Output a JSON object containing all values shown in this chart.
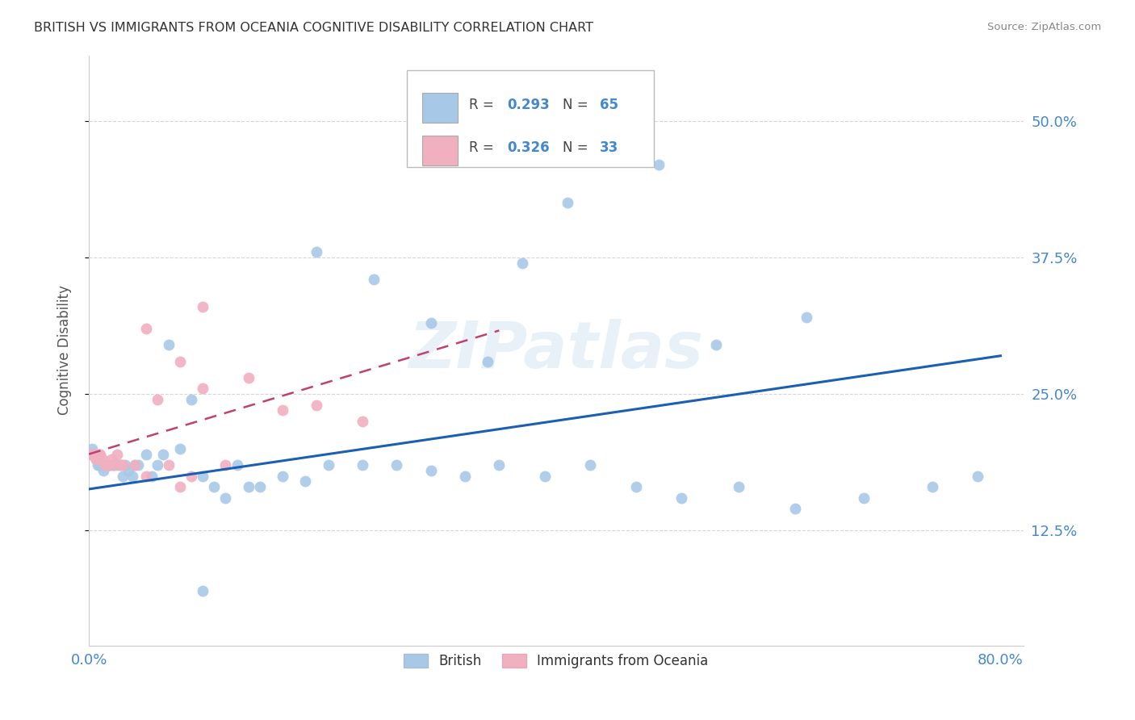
{
  "title": "BRITISH VS IMMIGRANTS FROM OCEANIA COGNITIVE DISABILITY CORRELATION CHART",
  "source": "Source: ZipAtlas.com",
  "ylabel": "Cognitive Disability",
  "xlim": [
    0.0,
    0.82
  ],
  "ylim": [
    0.02,
    0.56
  ],
  "y_tick_positions": [
    0.125,
    0.25,
    0.375,
    0.5
  ],
  "y_tick_labels": [
    "12.5%",
    "25.0%",
    "37.5%",
    "50.0%"
  ],
  "x_tick_positions": [
    0.0,
    0.2,
    0.4,
    0.6,
    0.8
  ],
  "x_tick_labels": [
    "0.0%",
    "",
    "",
    "",
    "80.0%"
  ],
  "blue_color": "#a8c8e8",
  "pink_color": "#f0b0c0",
  "blue_line_color": "#1a5fb4",
  "pink_line_color": "#c04070",
  "axis_color": "#4488cc",
  "watermark": "ZIPatlas",
  "legend_R_blue": "0.293",
  "legend_N_blue": "65",
  "legend_R_pink": "0.326",
  "legend_N_pink": "33",
  "blue_x": [
    0.002,
    0.003,
    0.004,
    0.005,
    0.006,
    0.007,
    0.008,
    0.009,
    0.01,
    0.011,
    0.012,
    0.013,
    0.015,
    0.016,
    0.018,
    0.02,
    0.022,
    0.025,
    0.027,
    0.03,
    0.032,
    0.035,
    0.038,
    0.04,
    0.043,
    0.05,
    0.055,
    0.06,
    0.065,
    0.07,
    0.08,
    0.09,
    0.1,
    0.11,
    0.12,
    0.13,
    0.14,
    0.15,
    0.17,
    0.19,
    0.21,
    0.24,
    0.27,
    0.3,
    0.33,
    0.36,
    0.4,
    0.44,
    0.48,
    0.52,
    0.57,
    0.62,
    0.68,
    0.74,
    0.78,
    0.25,
    0.3,
    0.38,
    0.42,
    0.5,
    0.55,
    0.63,
    0.35,
    0.2,
    0.1
  ],
  "blue_y": [
    0.195,
    0.2,
    0.195,
    0.195,
    0.19,
    0.19,
    0.185,
    0.185,
    0.185,
    0.185,
    0.185,
    0.18,
    0.185,
    0.185,
    0.185,
    0.185,
    0.185,
    0.185,
    0.185,
    0.175,
    0.185,
    0.18,
    0.175,
    0.185,
    0.185,
    0.195,
    0.175,
    0.185,
    0.195,
    0.295,
    0.2,
    0.245,
    0.175,
    0.165,
    0.155,
    0.185,
    0.165,
    0.165,
    0.175,
    0.17,
    0.185,
    0.185,
    0.185,
    0.18,
    0.175,
    0.185,
    0.175,
    0.185,
    0.165,
    0.155,
    0.165,
    0.145,
    0.155,
    0.165,
    0.175,
    0.355,
    0.315,
    0.37,
    0.425,
    0.46,
    0.295,
    0.32,
    0.28,
    0.38,
    0.07
  ],
  "pink_x": [
    0.002,
    0.003,
    0.004,
    0.005,
    0.006,
    0.007,
    0.008,
    0.009,
    0.01,
    0.012,
    0.014,
    0.016,
    0.018,
    0.02,
    0.022,
    0.025,
    0.028,
    0.03,
    0.04,
    0.05,
    0.06,
    0.07,
    0.08,
    0.09,
    0.1,
    0.12,
    0.14,
    0.17,
    0.2,
    0.24,
    0.1,
    0.05,
    0.08
  ],
  "pink_y": [
    0.195,
    0.195,
    0.195,
    0.195,
    0.19,
    0.19,
    0.195,
    0.195,
    0.195,
    0.19,
    0.185,
    0.185,
    0.185,
    0.19,
    0.185,
    0.195,
    0.185,
    0.185,
    0.185,
    0.175,
    0.245,
    0.185,
    0.165,
    0.175,
    0.255,
    0.185,
    0.265,
    0.235,
    0.24,
    0.225,
    0.33,
    0.31,
    0.28
  ]
}
